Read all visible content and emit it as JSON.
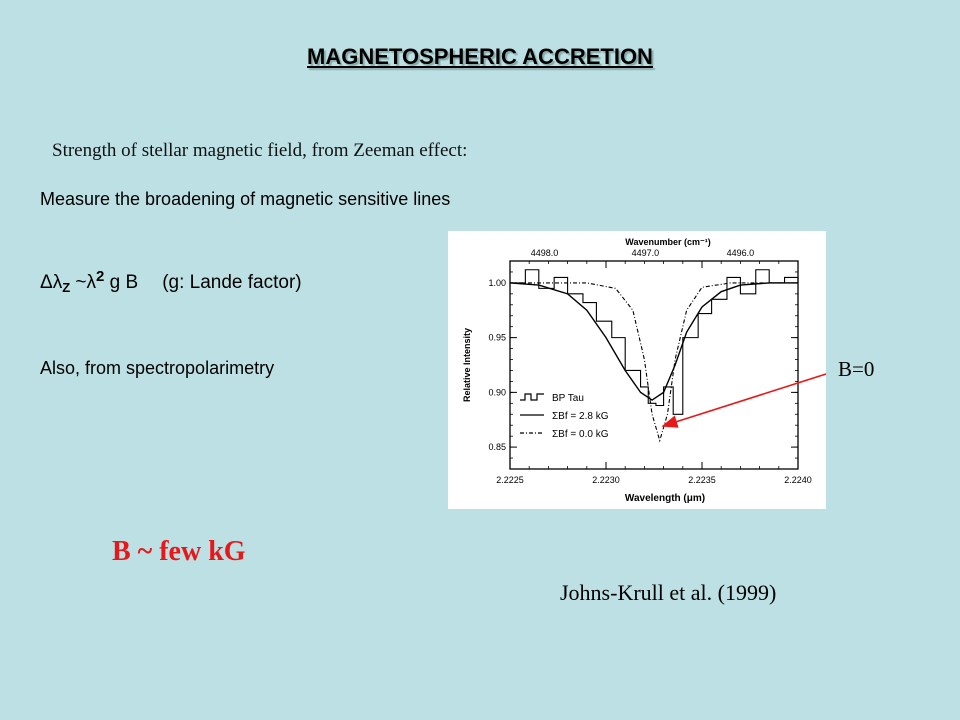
{
  "slide": {
    "title": "MAGNETOSPHERIC ACCRETION",
    "subtitle": "Strength of stellar magnetic field, from Zeeman effect:",
    "measure_text": "Measure the broadening of magnetic sensitive lines",
    "formula": {
      "delta": "Δλ",
      "sub": "Z",
      "approx": " ~λ",
      "sup": "2",
      "rest": " g B",
      "note": "(g: Lande factor)"
    },
    "also_text": "Also, from spectropolarimetry",
    "result": "B ~ few kG",
    "citation": "Johns-Krull et al. (1999)",
    "annotation": "B=0",
    "colors": {
      "background": "#bde0e4",
      "result": "#e8181a",
      "arrow": "#e8181a"
    }
  },
  "chart_data": {
    "type": "line",
    "xlabel": "Wavelength (μm)",
    "ylabel": "Relative Intensity",
    "top_axis_label": "Wavenumber (cm⁻¹)",
    "xlim": [
      2.2225,
      2.224
    ],
    "ylim": [
      0.83,
      1.02
    ],
    "xticks": [
      "2.2225",
      "2.2230",
      "2.2235",
      "2.2240"
    ],
    "xtick_values": [
      2.2225,
      2.223,
      2.2235,
      2.224
    ],
    "yticks": [
      "0.85",
      "0.90",
      "0.95",
      "1.00"
    ],
    "ytick_values": [
      0.85,
      0.9,
      0.95,
      1.0
    ],
    "top_ticks": [
      "4498.0",
      "4497.0",
      "4496.0"
    ],
    "legend_position": "lower-left",
    "series": [
      {
        "name": "BP Tau",
        "style": "step",
        "x": [
          2.2225,
          2.22258,
          2.22265,
          2.22273,
          2.2228,
          2.22288,
          2.22295,
          2.22303,
          2.2231,
          2.22318,
          2.22322,
          2.22326,
          2.2233,
          2.22335,
          2.2234,
          2.22348,
          2.22355,
          2.22363,
          2.2237,
          2.22378,
          2.22385,
          2.22393,
          2.224
        ],
        "y": [
          1.0,
          1.012,
          0.995,
          1.005,
          0.99,
          0.982,
          0.965,
          0.95,
          0.92,
          0.905,
          0.89,
          0.888,
          0.905,
          0.88,
          0.95,
          0.972,
          0.985,
          1.005,
          0.99,
          1.012,
          1.0,
          1.005,
          1.0
        ]
      },
      {
        "name": "ΣBf = 2.8 kG",
        "style": "solid",
        "x": [
          2.2225,
          2.22265,
          2.2228,
          2.2229,
          2.223,
          2.2231,
          2.22318,
          2.22324,
          2.2233,
          2.22336,
          2.22342,
          2.2235,
          2.2236,
          2.2237,
          2.22385,
          2.224
        ],
        "y": [
          1.0,
          0.998,
          0.99,
          0.975,
          0.95,
          0.92,
          0.9,
          0.893,
          0.9,
          0.925,
          0.955,
          0.978,
          0.992,
          0.998,
          1.0,
          1.0
        ]
      },
      {
        "name": "ΣBf = 0.0 kG",
        "style": "dashdot",
        "x": [
          2.2225,
          2.2229,
          2.22305,
          2.22314,
          2.2232,
          2.22324,
          2.22328,
          2.22332,
          2.22336,
          2.22342,
          2.2235,
          2.22365,
          2.224
        ],
        "y": [
          1.0,
          1.0,
          0.995,
          0.975,
          0.93,
          0.88,
          0.856,
          0.88,
          0.93,
          0.975,
          0.996,
          1.0,
          1.0
        ]
      }
    ]
  }
}
